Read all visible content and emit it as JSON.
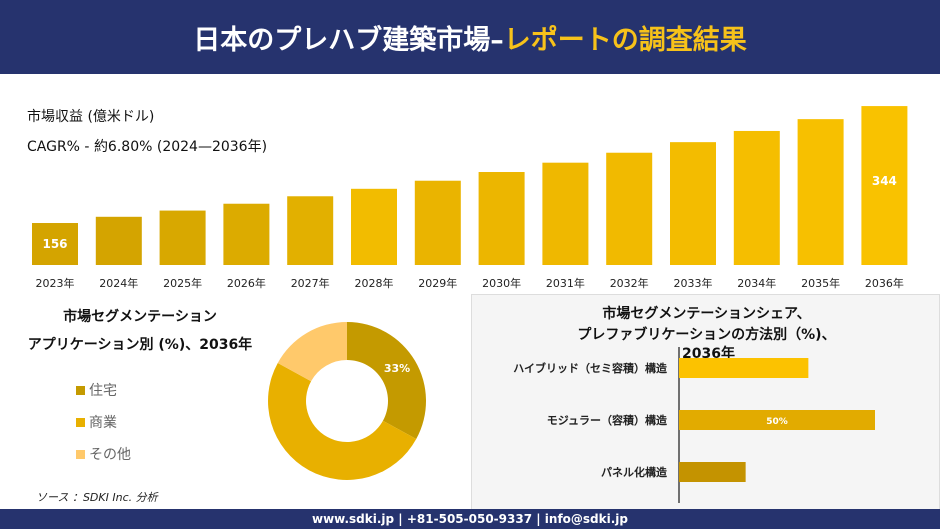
{
  "header": {
    "title_main": "日本のプレハブ建築市場–",
    "title_accent": "レポートの調査結果"
  },
  "colors": {
    "navy": "#26336e",
    "accent": "#f7c21a",
    "gold_dark": "#c49a00",
    "gold": "#e8b000",
    "gold_light": "#ffc96b"
  },
  "chart_data": [
    {
      "type": "bar",
      "subtitle1": "市場収益 (億米ドル)",
      "subtitle2": "CAGR% - 約6.80% (2024—2036年)",
      "categories": [
        "2023年",
        "2024年",
        "2025年",
        "2026年",
        "2027年",
        "2028年",
        "2029年",
        "2030年",
        "2031年",
        "2032年",
        "2033年",
        "2034年",
        "2035年",
        "2036年"
      ],
      "values": [
        156,
        166,
        176,
        187,
        199,
        211,
        224,
        238,
        253,
        269,
        286,
        304,
        323,
        344
      ],
      "data_labels": {
        "0": "156",
        "13": "344"
      }
    },
    {
      "type": "pie",
      "variant": "donut",
      "title1": "市場セグメンテーション",
      "title2": "アプリケーション別 (%)、2036年",
      "labels": [
        "住宅",
        "商業",
        "その他"
      ],
      "values": [
        33,
        50,
        17
      ],
      "data_label": "33%",
      "legend": "left"
    },
    {
      "type": "bar",
      "orientation": "horizontal",
      "title1": "市場セグメンテーションシェア、",
      "title2": "プレファブリケーションの方法別（%)、",
      "title3": "2036年",
      "categories": [
        "ハイブリッド（セミ容積）構造",
        "モジュラー（容積）構造",
        "パネル化構造"
      ],
      "values": [
        33,
        50,
        17
      ],
      "data_label": "50%"
    }
  ],
  "source": "ソース ：SDKI Inc. 分析",
  "footer": "www.sdki.jp | +81-505-050-9337 | info@sdki.jp"
}
